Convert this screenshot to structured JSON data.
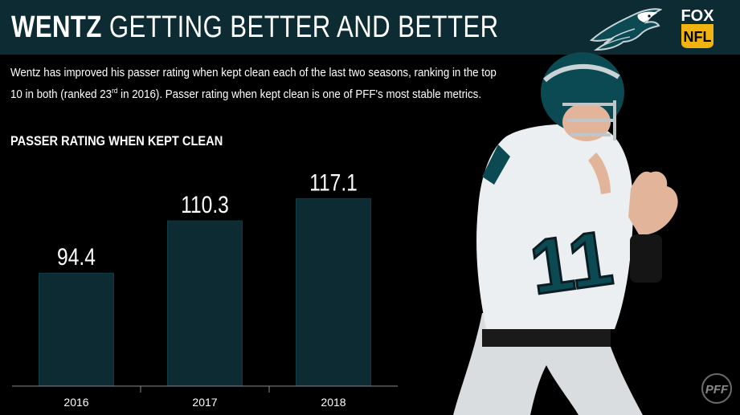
{
  "header": {
    "title_bold": "WENTZ",
    "title_rest": "GETTING BETTER AND BETTER",
    "logo": "eagles-logo",
    "broadcaster_logo": {
      "top": "FOX",
      "bottom": "NFL"
    }
  },
  "description": {
    "part1": "Wentz has improved his passer rating when kept clean each of the last two seasons, ranking in the top 10 in both (ranked 23",
    "sup": "rd",
    "part2": " in 2016). Passer rating when kept clean is one of PFF's most stable metrics."
  },
  "chart_data": {
    "type": "bar",
    "title": "PASSER RATING WHEN KEPT CLEAN",
    "categories": [
      "2016",
      "2017",
      "2018"
    ],
    "values": [
      94.4,
      110.3,
      117.1
    ],
    "value_labels": [
      "94.4",
      "110.3",
      "117.1"
    ],
    "bar_color": "#0c2b33",
    "ylim": [
      60,
      125
    ],
    "grid": false
  },
  "footer": {
    "watermark": "PFF"
  },
  "colors": {
    "header_bg": "#0c2b33",
    "background": "#000000",
    "text": "#ffffff"
  }
}
